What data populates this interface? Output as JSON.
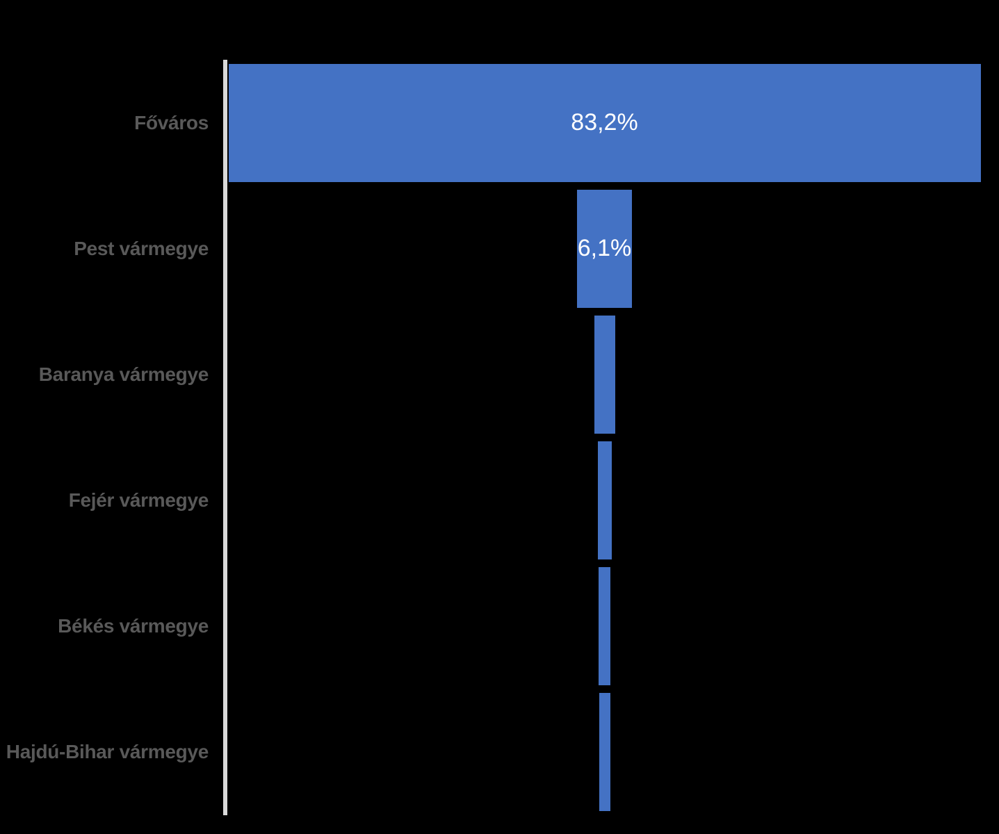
{
  "chart_data": {
    "type": "bar",
    "subtype": "funnel-horizontal-centered",
    "title": "",
    "categories": [
      "Főváros",
      "Pest vármegye",
      "Baranya vármegye",
      "Fejér vármegye",
      "Békés vármegye",
      "Hajdú-Bihar vármegye"
    ],
    "values": [
      83.2,
      6.1,
      2.3,
      1.5,
      1.3,
      1.2
    ],
    "data_labels": [
      "83,2%",
      "6,1%",
      "",
      "",
      "",
      ""
    ],
    "value_unit": "%",
    "decimal_separator": ",",
    "xlabel": "",
    "ylabel": "",
    "legend": "none",
    "grid": false,
    "category_axis_position": "left",
    "background_color": "#000000",
    "bar_color": "#4472C4",
    "category_label_color": "#595959",
    "data_label_color": "#FFFFFF",
    "axis_line_color": "#D9D9D9"
  }
}
